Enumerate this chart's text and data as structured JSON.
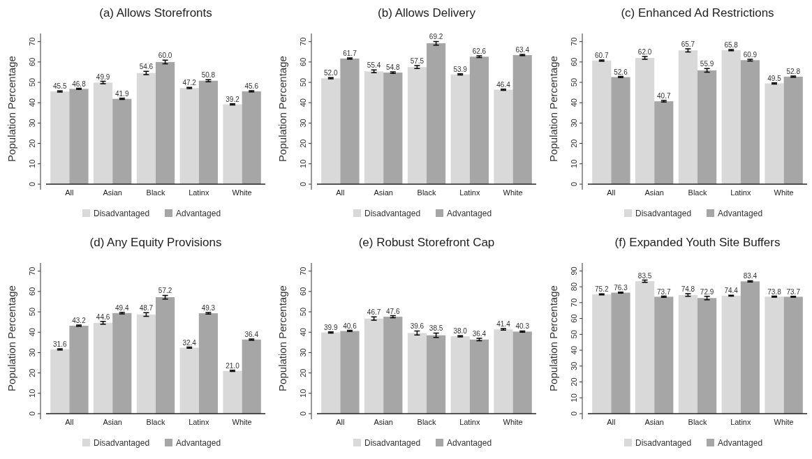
{
  "chart_data": [
    {
      "type": "bar",
      "title": "(a) Allows Storefronts",
      "ylabel": "Population Percentage",
      "categories": [
        "All",
        "Asian",
        "Black",
        "Latinx",
        "White"
      ],
      "ylim": [
        0,
        74
      ],
      "yticks": [
        0,
        10,
        20,
        30,
        40,
        50,
        60,
        70
      ],
      "legend": "bottom",
      "series": [
        {
          "name": "Disadvantaged",
          "color": "#d9d9d9",
          "values": [
            45.5,
            49.9,
            54.6,
            47.2,
            39.2
          ],
          "value_labels": [
            "45.5",
            "49.9",
            "54.6",
            "47.2",
            "39.2"
          ],
          "errors": [
            0.3,
            0.6,
            0.8,
            0.3,
            0.3
          ]
        },
        {
          "name": "Advantaged",
          "color": "#a6a6a6",
          "values": [
            46.8,
            41.9,
            60.0,
            50.8,
            45.6
          ],
          "value_labels": [
            "46.8",
            "41.9",
            "60.0",
            "50.8",
            "45.6"
          ],
          "errors": [
            0.3,
            0.3,
            0.9,
            0.5,
            0.3
          ]
        }
      ]
    },
    {
      "type": "bar",
      "title": "(b) Allows Delivery",
      "ylabel": "Population Percentage",
      "categories": [
        "All",
        "Asian",
        "Black",
        "Latinx",
        "White"
      ],
      "ylim": [
        0,
        74
      ],
      "yticks": [
        0,
        10,
        20,
        30,
        40,
        50,
        60,
        70
      ],
      "legend": "bottom",
      "series": [
        {
          "name": "Disadvantaged",
          "color": "#d9d9d9",
          "values": [
            52.0,
            55.4,
            57.5,
            53.9,
            46.4
          ],
          "value_labels": [
            "52.0",
            "55.4",
            "57.5",
            "53.9",
            "46.4"
          ],
          "errors": [
            0.3,
            0.7,
            0.7,
            0.3,
            0.3
          ]
        },
        {
          "name": "Advantaged",
          "color": "#a6a6a6",
          "values": [
            61.7,
            54.8,
            69.2,
            62.6,
            63.4
          ],
          "value_labels": [
            "61.7",
            "54.8",
            "69.2",
            "62.6",
            "63.4"
          ],
          "errors": [
            0.3,
            0.4,
            0.9,
            0.4,
            0.3
          ]
        }
      ]
    },
    {
      "type": "bar",
      "title": "(c) Enhanced Ad Restrictions",
      "ylabel": "Population Percentage",
      "categories": [
        "All",
        "Asian",
        "Black",
        "Latinx",
        "White"
      ],
      "ylim": [
        0,
        74
      ],
      "yticks": [
        0,
        10,
        20,
        30,
        40,
        50,
        60,
        70
      ],
      "legend": "bottom",
      "series": [
        {
          "name": "Disadvantaged",
          "color": "#d9d9d9",
          "values": [
            60.7,
            62.0,
            65.7,
            65.8,
            49.5
          ],
          "value_labels": [
            "60.7",
            "62.0",
            "65.7",
            "65.8",
            "49.5"
          ],
          "errors": [
            0.3,
            0.7,
            0.8,
            0.3,
            0.3
          ]
        },
        {
          "name": "Advantaged",
          "color": "#a6a6a6",
          "values": [
            52.6,
            40.7,
            55.9,
            60.9,
            52.8
          ],
          "value_labels": [
            "52.6",
            "40.7",
            "55.9",
            "60.9",
            "52.8"
          ],
          "errors": [
            0.3,
            0.4,
            0.9,
            0.4,
            0.3
          ]
        }
      ]
    },
    {
      "type": "bar",
      "title": "(d) Any Equity Provisions",
      "ylabel": "Population Percentage",
      "categories": [
        "All",
        "Asian",
        "Black",
        "Latinx",
        "White"
      ],
      "ylim": [
        0,
        74
      ],
      "yticks": [
        0,
        10,
        20,
        30,
        40,
        50,
        60,
        70
      ],
      "legend": "bottom",
      "series": [
        {
          "name": "Disadvantaged",
          "color": "#d9d9d9",
          "values": [
            31.6,
            44.6,
            48.7,
            32.4,
            21.0
          ],
          "value_labels": [
            "31.6",
            "44.6",
            "48.7",
            "32.4",
            "21.0"
          ],
          "errors": [
            0.3,
            0.7,
            0.9,
            0.3,
            0.3
          ]
        },
        {
          "name": "Advantaged",
          "color": "#a6a6a6",
          "values": [
            43.2,
            49.4,
            57.2,
            49.3,
            36.4
          ],
          "value_labels": [
            "43.2",
            "49.4",
            "57.2",
            "49.3",
            "36.4"
          ],
          "errors": [
            0.3,
            0.4,
            0.9,
            0.4,
            0.3
          ]
        }
      ]
    },
    {
      "type": "bar",
      "title": "(e) Robust Storefront Cap",
      "ylabel": "Population Percentage",
      "categories": [
        "All",
        "Asian",
        "Black",
        "Latinx",
        "White"
      ],
      "ylim": [
        0,
        74
      ],
      "yticks": [
        0,
        10,
        20,
        30,
        40,
        50,
        60,
        70
      ],
      "legend": "bottom",
      "series": [
        {
          "name": "Disadvantaged",
          "color": "#d9d9d9",
          "values": [
            39.9,
            46.7,
            39.6,
            38.0,
            41.4
          ],
          "value_labels": [
            "39.9",
            "46.7",
            "39.6",
            "38.0",
            "41.4"
          ],
          "errors": [
            0.3,
            0.8,
            1.0,
            0.3,
            0.4
          ]
        },
        {
          "name": "Advantaged",
          "color": "#a6a6a6",
          "values": [
            40.6,
            47.6,
            38.5,
            36.4,
            40.3
          ],
          "value_labels": [
            "40.6",
            "47.6",
            "38.5",
            "36.4",
            "40.3"
          ],
          "errors": [
            0.3,
            0.5,
            1.1,
            0.6,
            0.3
          ]
        }
      ]
    },
    {
      "type": "bar",
      "title": "(f) Expanded Youth Site Buffers",
      "ylabel": "Population Percentage",
      "categories": [
        "All",
        "Asian",
        "Black",
        "Latinx",
        "White"
      ],
      "ylim": [
        0,
        95
      ],
      "yticks": [
        0,
        10,
        20,
        30,
        40,
        50,
        60,
        70,
        80,
        90
      ],
      "legend": "bottom",
      "series": [
        {
          "name": "Disadvantaged",
          "color": "#d9d9d9",
          "values": [
            75.2,
            83.5,
            74.8,
            74.4,
            73.8
          ],
          "value_labels": [
            "75.2",
            "83.5",
            "74.8",
            "74.4",
            "73.8"
          ],
          "errors": [
            0.3,
            0.7,
            0.8,
            0.3,
            0.3
          ]
        },
        {
          "name": "Advantaged",
          "color": "#a6a6a6",
          "values": [
            76.3,
            73.7,
            72.9,
            83.4,
            73.7
          ],
          "value_labels": [
            "76.3",
            "73.7",
            "72.9",
            "83.4",
            "73.7"
          ],
          "errors": [
            0.3,
            0.4,
            1.1,
            0.4,
            0.3
          ]
        }
      ]
    }
  ]
}
